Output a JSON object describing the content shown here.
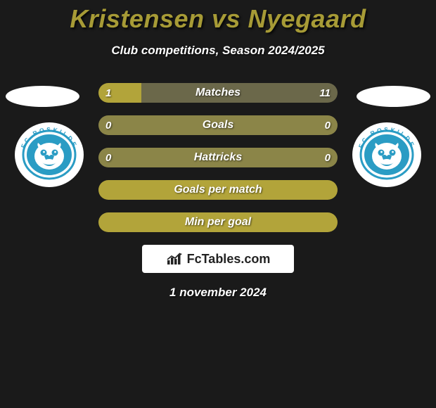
{
  "title": {
    "text": "Kristensen vs Nyegaard",
    "color": "#a79b36",
    "fontsize": 36
  },
  "subtitle": {
    "text": "Club competitions, Season 2024/2025",
    "fontsize": 17
  },
  "background_color": "#1a1a1a",
  "ellipse_color": "#ffffff",
  "bar_colors": {
    "left": "#b2a43a",
    "right": "#6b684a",
    "single": "#b2a43a"
  },
  "bars": [
    {
      "label": "Matches",
      "left_val": "1",
      "right_val": "11",
      "left_pct": 18,
      "right_pct": 82,
      "show_vals": true
    },
    {
      "label": "Goals",
      "left_val": "0",
      "right_val": "0",
      "left_pct": 0,
      "right_pct": 100,
      "show_vals": true
    },
    {
      "label": "Hattricks",
      "left_val": "0",
      "right_val": "0",
      "left_pct": 0,
      "right_pct": 100,
      "show_vals": true
    },
    {
      "label": "Goals per match",
      "left_val": "",
      "right_val": "",
      "left_pct": 100,
      "right_pct": 0,
      "show_vals": false
    },
    {
      "label": "Min per goal",
      "left_val": "",
      "right_val": "",
      "left_pct": 100,
      "right_pct": 0,
      "show_vals": false
    }
  ],
  "badge": {
    "outer_text": "FC ROSKILDE",
    "outer_bg": "#ffffff",
    "ring_color": "#2a9cc4",
    "inner_bg": "#2a9cc4",
    "face_color": "#ffffff"
  },
  "credit": {
    "text": "FcTables.com",
    "bg": "#ffffff",
    "text_color": "#222222"
  },
  "date": {
    "text": "1 november 2024",
    "fontsize": 17
  }
}
